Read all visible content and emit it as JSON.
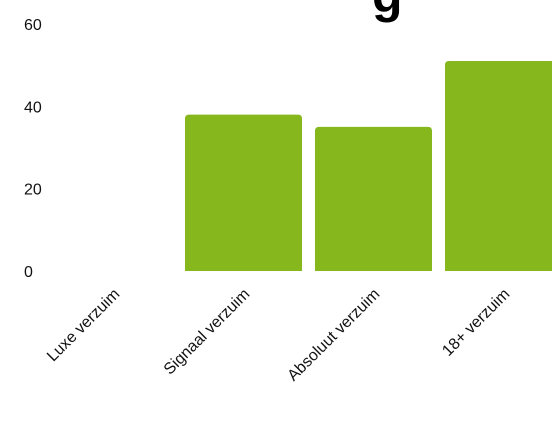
{
  "header": {
    "title_fragment": "g"
  },
  "chart_data": {
    "type": "bar",
    "categories": [
      "Luxe verzuim",
      "Signaal verzuim",
      "Absoluut verzuim",
      "18+ verzuim"
    ],
    "series": [
      {
        "values": [
          0,
          38,
          35,
          51
        ]
      }
    ],
    "yticks": [
      0,
      20,
      40,
      60
    ],
    "ylim": [
      0,
      60
    ],
    "grid": false,
    "legend": "none",
    "colors": {
      "bar": "#86b81e",
      "text": "#111111"
    }
  }
}
